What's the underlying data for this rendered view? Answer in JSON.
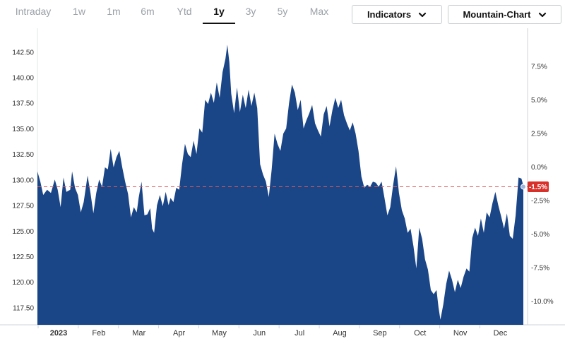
{
  "range_tabs": [
    {
      "label": "Intraday",
      "active": false
    },
    {
      "label": "1w",
      "active": false
    },
    {
      "label": "1m",
      "active": false
    },
    {
      "label": "6m",
      "active": false
    },
    {
      "label": "Ytd",
      "active": false
    },
    {
      "label": "1y",
      "active": true
    },
    {
      "label": "3y",
      "active": false
    },
    {
      "label": "5y",
      "active": false
    },
    {
      "label": "Max",
      "active": false
    }
  ],
  "dropdowns": {
    "indicators_label": "Indicators",
    "chart_type_label": "Mountain-Chart"
  },
  "colors": {
    "area_fill": "#1a4587",
    "reference_line": "#e05a5a",
    "badge": "#d9302a",
    "axis_text": "#333333"
  },
  "chart_data": {
    "type": "area",
    "title": "",
    "xlabel": "",
    "ylabel": "",
    "ylim": [
      115.8,
      144.8
    ],
    "y_ticks": [
      "117.50",
      "120.00",
      "122.50",
      "125.00",
      "127.50",
      "130.00",
      "132.50",
      "135.00",
      "137.50",
      "140.00",
      "142.50"
    ],
    "y2_ticks": [
      "-10.0%",
      "-7.5%",
      "-5.0%",
      "-2.5%",
      "0.0%",
      "2.5%",
      "5.0%",
      "7.5%"
    ],
    "x_labels": [
      "2023",
      "Feb",
      "Mar",
      "Apr",
      "May",
      "Jun",
      "Jul",
      "Aug",
      "Sep",
      "Oct",
      "Nov",
      "Dec"
    ],
    "reference_value": 129.3,
    "reference_label": "-1.5%",
    "grid": false,
    "points": [
      [
        0,
        130.8
      ],
      [
        1.5,
        129.8
      ],
      [
        3,
        128.5
      ],
      [
        5,
        129
      ],
      [
        7,
        128.7
      ],
      [
        9,
        130
      ],
      [
        10.5,
        129
      ],
      [
        12,
        127.3
      ],
      [
        13.5,
        130.2
      ],
      [
        15,
        128.8
      ],
      [
        17,
        129
      ],
      [
        18,
        130.8
      ],
      [
        19.5,
        129.2
      ],
      [
        21,
        128.5
      ],
      [
        22.5,
        126.8
      ],
      [
        24,
        127.8
      ],
      [
        26,
        130.4
      ],
      [
        27.5,
        128.7
      ],
      [
        29,
        126.7
      ],
      [
        30.5,
        128.7
      ],
      [
        32,
        130
      ],
      [
        33.5,
        129.3
      ],
      [
        35,
        131.2
      ],
      [
        36.5,
        131
      ],
      [
        38,
        133
      ],
      [
        39.5,
        131.2
      ],
      [
        41,
        132.2
      ],
      [
        42.5,
        132.8
      ],
      [
        44,
        131.2
      ],
      [
        45.5,
        129.8
      ],
      [
        47,
        128.6
      ],
      [
        48.5,
        126.3
      ],
      [
        50,
        127.3
      ],
      [
        51.5,
        126.8
      ],
      [
        52.5,
        128.2
      ],
      [
        54,
        129.8
      ],
      [
        55.5,
        126.5
      ],
      [
        57,
        126.6
      ],
      [
        58.5,
        127.2
      ],
      [
        59.5,
        125.2
      ],
      [
        60.5,
        124.8
      ],
      [
        62,
        127.5
      ],
      [
        63.5,
        128.5
      ],
      [
        65,
        127.4
      ],
      [
        66.5,
        128.8
      ],
      [
        68,
        127.5
      ],
      [
        69,
        128.2
      ],
      [
        70.5,
        127.8
      ],
      [
        72,
        129.2
      ],
      [
        73.5,
        129
      ],
      [
        75,
        131.5
      ],
      [
        76.5,
        133.5
      ],
      [
        78,
        132.5
      ],
      [
        79.5,
        132.2
      ],
      [
        81,
        133.8
      ],
      [
        82.5,
        132.5
      ],
      [
        84,
        135
      ],
      [
        85.5,
        134.6
      ],
      [
        87,
        137.8
      ],
      [
        88.5,
        137.4
      ],
      [
        90,
        138.5
      ],
      [
        91.5,
        137.5
      ],
      [
        93,
        139.5
      ],
      [
        94.5,
        138
      ],
      [
        96,
        140.5
      ],
      [
        97.5,
        141.8
      ],
      [
        98.5,
        143.2
      ],
      [
        99.5,
        141.5
      ],
      [
        100.5,
        138.4
      ],
      [
        102,
        136.5
      ],
      [
        103.5,
        139
      ],
      [
        105,
        136.6
      ],
      [
        106.5,
        138.3
      ],
      [
        108,
        137
      ],
      [
        109.5,
        138.8
      ],
      [
        111,
        137.2
      ],
      [
        112.5,
        138.5
      ],
      [
        114,
        137
      ],
      [
        115.5,
        131.5
      ],
      [
        117,
        130.5
      ],
      [
        118.5,
        129.8
      ],
      [
        120,
        128.3
      ],
      [
        121.5,
        131
      ],
      [
        123,
        134.5
      ],
      [
        124.5,
        133.5
      ],
      [
        126,
        132.8
      ],
      [
        127.5,
        134.5
      ],
      [
        129,
        135
      ],
      [
        130.5,
        137.5
      ],
      [
        132,
        139.3
      ],
      [
        133.5,
        138.5
      ],
      [
        135,
        136.8
      ],
      [
        136.5,
        137.8
      ],
      [
        138,
        135
      ],
      [
        139.5,
        135.8
      ],
      [
        141,
        136.5
      ],
      [
        142.5,
        137.3
      ],
      [
        144,
        135.5
      ],
      [
        145.5,
        134.8
      ],
      [
        147,
        134.2
      ],
      [
        148.5,
        136.4
      ],
      [
        150,
        137.2
      ],
      [
        151.5,
        135.2
      ],
      [
        153,
        136.8
      ],
      [
        154.5,
        138
      ],
      [
        156,
        137
      ],
      [
        157.5,
        137.8
      ],
      [
        159,
        136.3
      ],
      [
        160.5,
        135.5
      ],
      [
        162,
        134.8
      ],
      [
        163.5,
        135.6
      ],
      [
        165,
        134.5
      ],
      [
        166.5,
        132.8
      ],
      [
        168,
        130.3
      ],
      [
        169.5,
        129.2
      ],
      [
        171,
        129.5
      ],
      [
        172.5,
        129.3
      ],
      [
        174,
        129.8
      ],
      [
        175.5,
        129.7
      ],
      [
        177,
        129.3
      ],
      [
        178.5,
        129.8
      ],
      [
        180,
        128.2
      ],
      [
        181.5,
        126.5
      ],
      [
        183,
        127.3
      ],
      [
        184.5,
        129.5
      ],
      [
        186,
        131.3
      ],
      [
        187.5,
        128.7
      ],
      [
        189,
        127
      ],
      [
        190.5,
        126.2
      ],
      [
        192,
        124.8
      ],
      [
        193.5,
        125.2
      ],
      [
        195,
        123.5
      ],
      [
        196.5,
        121.3
      ],
      [
        198,
        125.3
      ],
      [
        199.5,
        124.2
      ],
      [
        201,
        122.2
      ],
      [
        202.5,
        121.2
      ],
      [
        204,
        119.2
      ],
      [
        205.5,
        118.8
      ],
      [
        207,
        119.2
      ],
      [
        208,
        117.5
      ],
      [
        209,
        116.3
      ],
      [
        210.5,
        117.8
      ],
      [
        212,
        119.8
      ],
      [
        213.5,
        121.1
      ],
      [
        215,
        120.2
      ],
      [
        216.5,
        119
      ],
      [
        218,
        120.2
      ],
      [
        219.5,
        119.4
      ],
      [
        221,
        120.5
      ],
      [
        222.5,
        121.3
      ],
      [
        224,
        121
      ],
      [
        225.5,
        124.3
      ],
      [
        227,
        125.3
      ],
      [
        228.5,
        124.5
      ],
      [
        230,
        126.2
      ],
      [
        231.5,
        124.8
      ],
      [
        233,
        126.8
      ],
      [
        234.5,
        126.3
      ],
      [
        236,
        127.7
      ],
      [
        237.5,
        128.8
      ],
      [
        239,
        127.5
      ],
      [
        240.5,
        126.4
      ],
      [
        242,
        125.2
      ],
      [
        243.5,
        126.7
      ],
      [
        245,
        124.5
      ],
      [
        246.5,
        124.2
      ],
      [
        248,
        126.5
      ],
      [
        249.5,
        130.2
      ],
      [
        251,
        130.1
      ],
      [
        252,
        129.4
      ]
    ]
  }
}
